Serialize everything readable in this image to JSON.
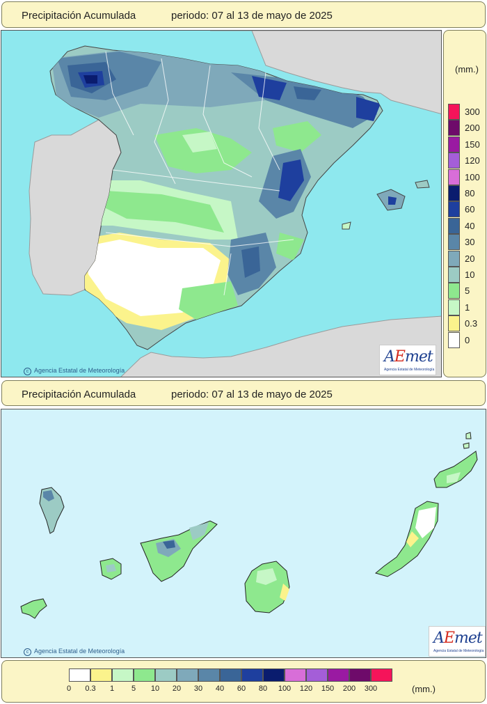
{
  "peninsula_panel": {
    "title": "Precipitación Acumulada",
    "period": "periodo: 07 al 13 de mayo de 2025",
    "credit": "Agencia Estatal de Meteorología"
  },
  "canarias_panel": {
    "title": "Precipitación Acumulada",
    "period": "periodo: 07 al 13 de mayo de 2025",
    "credit": "Agencia Estatal de Meteorología"
  },
  "logo": {
    "text_a": "A",
    "text_e": "E",
    "text_rest": "met",
    "subtitle": "Agencia Estatal de Meteorología"
  },
  "legend": {
    "unit": "(mm.)",
    "classes": [
      {
        "label": "0",
        "color": "#ffffff"
      },
      {
        "label": "0.3",
        "color": "#fbf38c"
      },
      {
        "label": "1",
        "color": "#c6f7c6"
      },
      {
        "label": "5",
        "color": "#8ee88e"
      },
      {
        "label": "10",
        "color": "#9ccbc4"
      },
      {
        "label": "20",
        "color": "#7fa9ba"
      },
      {
        "label": "30",
        "color": "#5a86a8"
      },
      {
        "label": "40",
        "color": "#3a6597"
      },
      {
        "label": "60",
        "color": "#1e3f9e"
      },
      {
        "label": "80",
        "color": "#0a1c6e"
      },
      {
        "label": "100",
        "color": "#d86ed8"
      },
      {
        "label": "120",
        "color": "#a45ed8"
      },
      {
        "label": "150",
        "color": "#9a1aa2"
      },
      {
        "label": "200",
        "color": "#6e0a6a"
      },
      {
        "label": "300",
        "color": "#f5145a"
      }
    ]
  },
  "map_colors": {
    "sea": "#8ee8ee",
    "foreign_land": "#d9d9d9",
    "canarias_sea": "#d3f3fb"
  }
}
